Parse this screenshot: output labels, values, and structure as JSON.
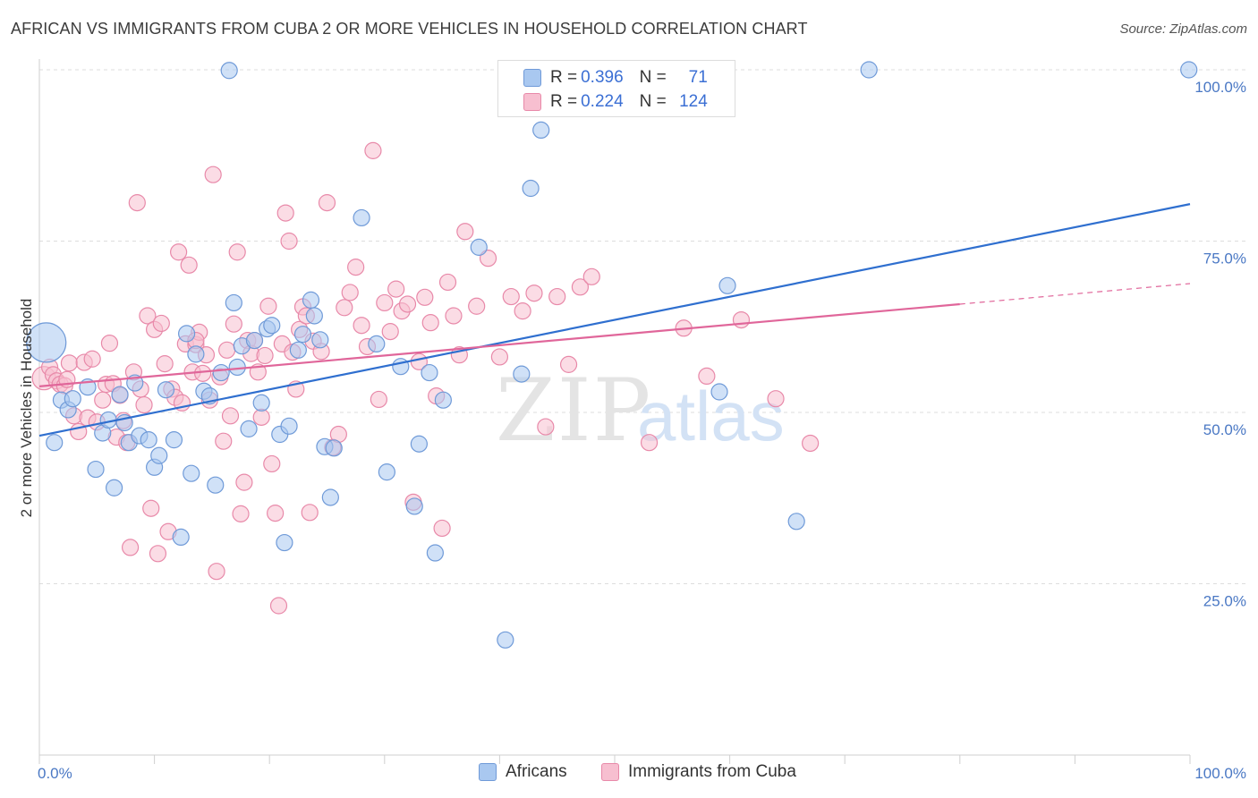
{
  "title": "AFRICAN VS IMMIGRANTS FROM CUBA 2 OR MORE VEHICLES IN HOUSEHOLD CORRELATION CHART",
  "source": "Source: ZipAtlas.com",
  "watermark": {
    "zip": "ZIP",
    "atlas": "atlas"
  },
  "legend": {
    "africans": {
      "r_label": "R =",
      "r_value": "0.396",
      "n_label": "N =",
      "n_value": "71"
    },
    "cuba": {
      "r_label": "R =",
      "r_value": "0.224",
      "n_label": "N =",
      "n_value": "124"
    }
  },
  "bottom_legend": {
    "africans": "Africans",
    "cuba": "Immigrants from Cuba"
  },
  "colors": {
    "africans_fill": "#a9c8f0",
    "africans_stroke": "#6f9ad8",
    "africans_line": "#2f6fcf",
    "cuba_fill": "#f7bfd0",
    "cuba_stroke": "#e889a9",
    "cuba_line": "#e0669a",
    "grid": "#dddddd",
    "tick_text": "#4a78c4"
  },
  "chart_data": {
    "type": "scatter",
    "title": "AFRICAN VS IMMIGRANTS FROM CUBA 2 OR MORE VEHICLES IN HOUSEHOLD CORRELATION CHART",
    "xlabel": "",
    "ylabel": "2 or more Vehicles in Household",
    "xlim": [
      0,
      100
    ],
    "ylim": [
      0,
      100
    ],
    "x_tick_labels": [
      "0.0%",
      "100.0%"
    ],
    "y_ticks": [
      25,
      50,
      75,
      100
    ],
    "y_tick_labels": [
      "25.0%",
      "50.0%",
      "75.0%",
      "100.0%"
    ],
    "grid": true,
    "legend_position": "top-center",
    "series": [
      {
        "name": "Africans",
        "r": 0.396,
        "n": 71,
        "trend": {
          "x": [
            0,
            100
          ],
          "y": [
            46.6,
            80.4
          ],
          "style": "solid"
        },
        "points": [
          {
            "x": 0.6,
            "y": 60.2,
            "s": "big"
          },
          {
            "x": 1.3,
            "y": 45.6
          },
          {
            "x": 1.9,
            "y": 51.8
          },
          {
            "x": 2.5,
            "y": 50.4
          },
          {
            "x": 2.9,
            "y": 52.0
          },
          {
            "x": 4.2,
            "y": 53.7
          },
          {
            "x": 4.9,
            "y": 41.7
          },
          {
            "x": 5.5,
            "y": 47.0
          },
          {
            "x": 6.0,
            "y": 48.9
          },
          {
            "x": 6.5,
            "y": 39.0
          },
          {
            "x": 7.0,
            "y": 52.6
          },
          {
            "x": 7.4,
            "y": 48.5
          },
          {
            "x": 7.8,
            "y": 45.6
          },
          {
            "x": 8.3,
            "y": 54.3
          },
          {
            "x": 8.7,
            "y": 46.6
          },
          {
            "x": 9.5,
            "y": 46.0
          },
          {
            "x": 10.0,
            "y": 42.0
          },
          {
            "x": 10.4,
            "y": 43.7
          },
          {
            "x": 11.0,
            "y": 53.3
          },
          {
            "x": 11.7,
            "y": 46.0
          },
          {
            "x": 12.3,
            "y": 31.8
          },
          {
            "x": 12.8,
            "y": 61.5
          },
          {
            "x": 13.2,
            "y": 41.1
          },
          {
            "x": 13.6,
            "y": 58.5
          },
          {
            "x": 14.3,
            "y": 53.1
          },
          {
            "x": 14.8,
            "y": 52.4
          },
          {
            "x": 15.3,
            "y": 39.4
          },
          {
            "x": 15.8,
            "y": 55.8
          },
          {
            "x": 16.5,
            "y": 99.9
          },
          {
            "x": 16.9,
            "y": 66.0
          },
          {
            "x": 17.2,
            "y": 56.6
          },
          {
            "x": 17.6,
            "y": 59.7
          },
          {
            "x": 18.2,
            "y": 47.6
          },
          {
            "x": 18.7,
            "y": 60.5
          },
          {
            "x": 19.3,
            "y": 51.4
          },
          {
            "x": 19.8,
            "y": 62.2
          },
          {
            "x": 20.2,
            "y": 62.7
          },
          {
            "x": 20.9,
            "y": 46.8
          },
          {
            "x": 21.3,
            "y": 31.0
          },
          {
            "x": 21.7,
            "y": 48.0
          },
          {
            "x": 22.5,
            "y": 59.1
          },
          {
            "x": 22.9,
            "y": 61.4
          },
          {
            "x": 23.6,
            "y": 66.4
          },
          {
            "x": 23.9,
            "y": 64.1
          },
          {
            "x": 24.4,
            "y": 60.6
          },
          {
            "x": 24.8,
            "y": 45.0
          },
          {
            "x": 25.3,
            "y": 37.6
          },
          {
            "x": 25.6,
            "y": 44.8
          },
          {
            "x": 28.0,
            "y": 78.4
          },
          {
            "x": 29.3,
            "y": 60.0
          },
          {
            "x": 30.2,
            "y": 41.3
          },
          {
            "x": 31.4,
            "y": 56.7
          },
          {
            "x": 32.6,
            "y": 36.3
          },
          {
            "x": 33.0,
            "y": 45.4
          },
          {
            "x": 33.9,
            "y": 55.8
          },
          {
            "x": 34.4,
            "y": 29.5
          },
          {
            "x": 35.1,
            "y": 51.8
          },
          {
            "x": 38.2,
            "y": 74.1
          },
          {
            "x": 40.5,
            "y": 16.8
          },
          {
            "x": 41.9,
            "y": 55.6
          },
          {
            "x": 42.7,
            "y": 82.7
          },
          {
            "x": 43.6,
            "y": 91.2
          },
          {
            "x": 59.1,
            "y": 53.0
          },
          {
            "x": 59.8,
            "y": 68.5
          },
          {
            "x": 65.8,
            "y": 34.1
          },
          {
            "x": 72.1,
            "y": 100.0
          },
          {
            "x": 99.9,
            "y": 100.0
          }
        ]
      },
      {
        "name": "Immigrants from Cuba",
        "r": 0.224,
        "n": 124,
        "trend": {
          "x": [
            0,
            80,
            100
          ],
          "y": [
            53.8,
            65.8,
            68.8
          ],
          "style": "solid-then-dashed"
        },
        "points": [
          {
            "x": 0.4,
            "y": 55.0,
            "s": "mid"
          },
          {
            "x": 0.9,
            "y": 56.6
          },
          {
            "x": 1.2,
            "y": 55.5
          },
          {
            "x": 1.5,
            "y": 54.6
          },
          {
            "x": 1.8,
            "y": 54.1
          },
          {
            "x": 2.2,
            "y": 53.9
          },
          {
            "x": 2.4,
            "y": 54.8
          },
          {
            "x": 2.6,
            "y": 57.2
          },
          {
            "x": 3.0,
            "y": 49.5
          },
          {
            "x": 3.4,
            "y": 47.2
          },
          {
            "x": 3.9,
            "y": 57.3
          },
          {
            "x": 4.2,
            "y": 49.2
          },
          {
            "x": 4.6,
            "y": 57.8
          },
          {
            "x": 5.0,
            "y": 48.6
          },
          {
            "x": 5.5,
            "y": 51.8
          },
          {
            "x": 5.8,
            "y": 54.1
          },
          {
            "x": 6.1,
            "y": 60.1
          },
          {
            "x": 6.4,
            "y": 54.2
          },
          {
            "x": 6.7,
            "y": 46.4
          },
          {
            "x": 7.0,
            "y": 52.5
          },
          {
            "x": 7.3,
            "y": 48.8
          },
          {
            "x": 7.6,
            "y": 45.6
          },
          {
            "x": 7.9,
            "y": 30.3
          },
          {
            "x": 8.2,
            "y": 55.9
          },
          {
            "x": 8.5,
            "y": 80.6
          },
          {
            "x": 8.8,
            "y": 53.4
          },
          {
            "x": 9.1,
            "y": 51.1
          },
          {
            "x": 9.4,
            "y": 64.1
          },
          {
            "x": 9.7,
            "y": 36.0
          },
          {
            "x": 10.0,
            "y": 62.1
          },
          {
            "x": 10.3,
            "y": 29.4
          },
          {
            "x": 10.6,
            "y": 63.0
          },
          {
            "x": 10.9,
            "y": 57.1
          },
          {
            "x": 11.2,
            "y": 32.6
          },
          {
            "x": 11.5,
            "y": 53.4
          },
          {
            "x": 11.8,
            "y": 52.2
          },
          {
            "x": 12.1,
            "y": 73.4
          },
          {
            "x": 12.4,
            "y": 51.4
          },
          {
            "x": 12.7,
            "y": 60.0
          },
          {
            "x": 13.0,
            "y": 71.5
          },
          {
            "x": 13.3,
            "y": 55.9
          },
          {
            "x": 13.6,
            "y": 59.9
          },
          {
            "x": 13.9,
            "y": 61.7
          },
          {
            "x": 14.2,
            "y": 55.7
          },
          {
            "x": 14.5,
            "y": 58.4
          },
          {
            "x": 14.8,
            "y": 51.8
          },
          {
            "x": 15.1,
            "y": 84.7
          },
          {
            "x": 15.4,
            "y": 26.8
          },
          {
            "x": 15.7,
            "y": 55.2
          },
          {
            "x": 16.0,
            "y": 45.8
          },
          {
            "x": 16.3,
            "y": 59.1
          },
          {
            "x": 16.6,
            "y": 49.5
          },
          {
            "x": 16.9,
            "y": 62.9
          },
          {
            "x": 17.2,
            "y": 73.4
          },
          {
            "x": 17.5,
            "y": 35.2
          },
          {
            "x": 17.8,
            "y": 39.8
          },
          {
            "x": 18.1,
            "y": 60.5
          },
          {
            "x": 18.4,
            "y": 58.6
          },
          {
            "x": 18.7,
            "y": 60.5
          },
          {
            "x": 19.0,
            "y": 55.9
          },
          {
            "x": 19.3,
            "y": 49.3
          },
          {
            "x": 19.6,
            "y": 58.3
          },
          {
            "x": 19.9,
            "y": 65.5
          },
          {
            "x": 20.2,
            "y": 42.5
          },
          {
            "x": 20.5,
            "y": 35.3
          },
          {
            "x": 20.8,
            "y": 21.8
          },
          {
            "x": 21.1,
            "y": 60.0
          },
          {
            "x": 21.4,
            "y": 79.1
          },
          {
            "x": 21.7,
            "y": 75.0
          },
          {
            "x": 22.0,
            "y": 58.8
          },
          {
            "x": 22.3,
            "y": 53.4
          },
          {
            "x": 22.6,
            "y": 62.1
          },
          {
            "x": 22.9,
            "y": 65.4
          },
          {
            "x": 23.2,
            "y": 64.1
          },
          {
            "x": 23.5,
            "y": 35.4
          },
          {
            "x": 23.8,
            "y": 60.4
          },
          {
            "x": 24.5,
            "y": 58.9
          },
          {
            "x": 25.0,
            "y": 80.6
          },
          {
            "x": 25.5,
            "y": 44.9
          },
          {
            "x": 26.0,
            "y": 46.8
          },
          {
            "x": 26.5,
            "y": 65.3
          },
          {
            "x": 27.0,
            "y": 67.5
          },
          {
            "x": 27.5,
            "y": 71.2
          },
          {
            "x": 28.0,
            "y": 62.7
          },
          {
            "x": 28.5,
            "y": 59.6
          },
          {
            "x": 29.0,
            "y": 88.2
          },
          {
            "x": 29.5,
            "y": 51.9
          },
          {
            "x": 30.0,
            "y": 66.0
          },
          {
            "x": 30.5,
            "y": 61.8
          },
          {
            "x": 31.0,
            "y": 68.0
          },
          {
            "x": 31.5,
            "y": 64.8
          },
          {
            "x": 32.0,
            "y": 65.8
          },
          {
            "x": 32.5,
            "y": 36.9
          },
          {
            "x": 33.0,
            "y": 57.4
          },
          {
            "x": 33.5,
            "y": 66.8
          },
          {
            "x": 34.0,
            "y": 63.1
          },
          {
            "x": 34.5,
            "y": 52.4
          },
          {
            "x": 35.0,
            "y": 33.1
          },
          {
            "x": 35.5,
            "y": 69.0
          },
          {
            "x": 36.0,
            "y": 64.1
          },
          {
            "x": 36.5,
            "y": 58.4
          },
          {
            "x": 37.0,
            "y": 76.4
          },
          {
            "x": 38.0,
            "y": 65.5
          },
          {
            "x": 39.0,
            "y": 72.5
          },
          {
            "x": 40.0,
            "y": 58.1
          },
          {
            "x": 41.0,
            "y": 66.9
          },
          {
            "x": 42.0,
            "y": 64.8
          },
          {
            "x": 43.0,
            "y": 67.4
          },
          {
            "x": 44.0,
            "y": 47.9
          },
          {
            "x": 45.0,
            "y": 66.9
          },
          {
            "x": 46.0,
            "y": 57.0
          },
          {
            "x": 47.0,
            "y": 68.3
          },
          {
            "x": 48.0,
            "y": 69.8
          },
          {
            "x": 53.0,
            "y": 45.6
          },
          {
            "x": 56.0,
            "y": 62.3
          },
          {
            "x": 58.0,
            "y": 55.3
          },
          {
            "x": 61.0,
            "y": 63.5
          },
          {
            "x": 64.0,
            "y": 52.0
          },
          {
            "x": 67.0,
            "y": 45.5
          },
          {
            "x": 13.6,
            "y": 60.5
          }
        ]
      }
    ]
  }
}
